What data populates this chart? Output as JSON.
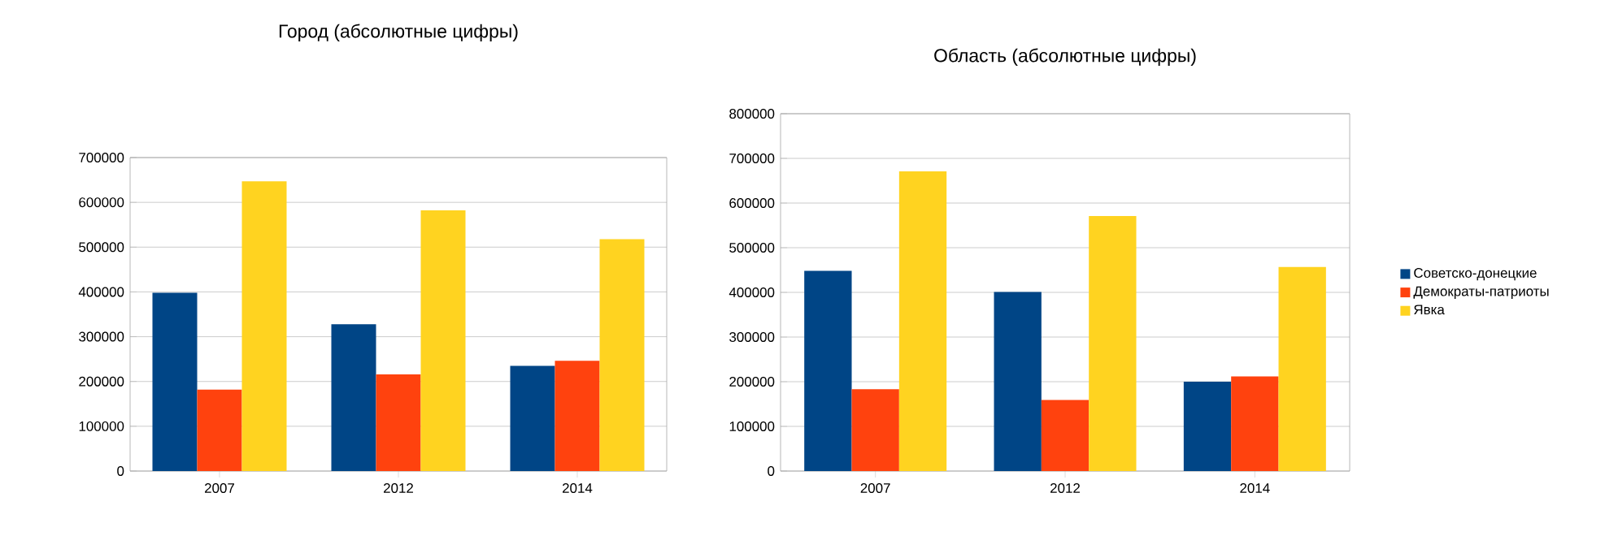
{
  "chart_data": [
    {
      "type": "bar",
      "title": "Город (абсолютные цифры)",
      "categories": [
        "2007",
        "2012",
        "2014"
      ],
      "series": [
        {
          "color": "#004586",
          "values": [
            398000,
            328000,
            235000
          ]
        },
        {
          "color": "#ff420e",
          "values": [
            182000,
            216000,
            246000
          ]
        },
        {
          "color": "#ffd320",
          "values": [
            647000,
            582000,
            518000
          ]
        }
      ],
      "ylim": [
        0,
        700000
      ],
      "yticks": [
        0,
        100000,
        200000,
        300000,
        400000,
        500000,
        600000,
        700000
      ],
      "grid": "y",
      "legend": false
    },
    {
      "type": "bar",
      "title": "Область (абсолютные цифры)",
      "categories": [
        "2007",
        "2012",
        "2014"
      ],
      "series": [
        {
          "name": "Советско-донецкие",
          "color": "#004586",
          "values": [
            448000,
            401000,
            200000
          ]
        },
        {
          "name": "Демократы-патриоты",
          "color": "#ff420e",
          "values": [
            183000,
            159000,
            212000
          ]
        },
        {
          "name": "Явка",
          "color": "#ffd320",
          "values": [
            671000,
            571000,
            457000
          ]
        }
      ],
      "ylim": [
        0,
        800000
      ],
      "yticks": [
        0,
        100000,
        200000,
        300000,
        400000,
        500000,
        600000,
        700000,
        800000
      ],
      "grid": "y",
      "legend": "right"
    }
  ]
}
